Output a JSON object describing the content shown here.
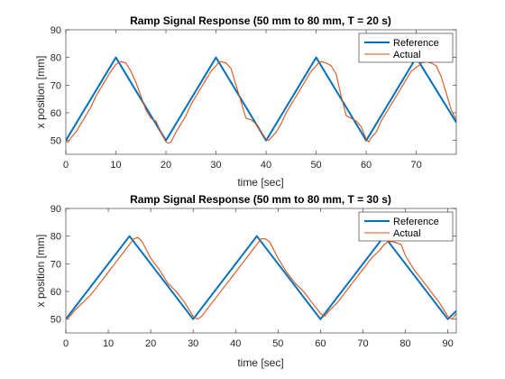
{
  "chart_data": [
    {
      "type": "line",
      "title": "Ramp Signal Response (50 mm to 80 mm, T = 20 s)",
      "xlabel": "time [sec]",
      "ylabel": "x position [mm]",
      "xlim": [
        0,
        78
      ],
      "ylim": [
        45,
        90
      ],
      "xticks": [
        0,
        10,
        20,
        30,
        40,
        50,
        60,
        70
      ],
      "yticks": [
        50,
        60,
        70,
        80,
        90
      ],
      "grid": false,
      "legend": "top-right",
      "series": [
        {
          "name": "Reference",
          "color": "#0072BD",
          "x": [
            0,
            10,
            20,
            30,
            40,
            50,
            60,
            70,
            78
          ],
          "y": [
            50,
            80,
            50,
            80,
            50,
            80,
            50,
            80,
            56.5
          ]
        },
        {
          "name": "Actual",
          "color": "#D95319",
          "x": [
            0,
            0.5,
            1,
            2,
            3,
            4,
            5,
            6,
            7,
            8,
            9,
            10,
            10.5,
            11,
            12,
            13,
            14,
            15,
            16,
            17,
            18,
            19,
            20,
            20.5,
            21,
            22,
            23,
            24,
            25,
            26,
            27,
            28,
            29,
            30,
            30.5,
            31,
            32,
            33,
            34,
            35,
            36,
            37,
            38,
            39,
            40,
            40.5,
            41,
            42,
            43,
            44,
            45,
            46,
            47,
            48,
            49,
            50,
            50.5,
            51,
            52,
            53,
            54,
            55,
            56,
            57,
            58,
            59,
            60,
            60.5,
            61,
            62,
            63,
            64,
            65,
            66,
            67,
            68,
            69,
            70,
            70.5,
            71,
            72,
            73,
            74,
            75,
            76,
            77,
            78
          ],
          "y": [
            49.5,
            49.5,
            51,
            53,
            56,
            59,
            62,
            66,
            69,
            72,
            75,
            77.5,
            78,
            78.5,
            78,
            75,
            71,
            66,
            61,
            58,
            57,
            53,
            49.5,
            49,
            49.5,
            53,
            56,
            59,
            63,
            66,
            69,
            72,
            75,
            77,
            78,
            78.5,
            78,
            76,
            70,
            64,
            58,
            57.5,
            56,
            53,
            50.5,
            50,
            51,
            53,
            56,
            60,
            63,
            66,
            69,
            72,
            75,
            77,
            78,
            78.5,
            78,
            77,
            74,
            66,
            59,
            58,
            57,
            55,
            50.5,
            49.5,
            51,
            53,
            57,
            60,
            63,
            66,
            69,
            72,
            75,
            76.5,
            77,
            78,
            78.5,
            78,
            77,
            73,
            67,
            61,
            57.5
          ]
        }
      ]
    },
    {
      "type": "line",
      "title": "Ramp Signal Response (50 mm to 80 mm, T = 30 s)",
      "xlabel": "time [sec]",
      "ylabel": "x position [mm]",
      "xlim": [
        0,
        92
      ],
      "ylim": [
        45,
        90
      ],
      "xticks": [
        0,
        10,
        20,
        30,
        40,
        50,
        60,
        70,
        80,
        90
      ],
      "yticks": [
        50,
        60,
        70,
        80,
        90
      ],
      "grid": false,
      "legend": "top-right",
      "series": [
        {
          "name": "Reference",
          "color": "#0072BD",
          "x": [
            0,
            15,
            30,
            45,
            60,
            75,
            90,
            92
          ],
          "y": [
            50,
            80,
            50,
            80,
            50,
            80,
            50,
            53
          ]
        },
        {
          "name": "Actual",
          "color": "#D95319",
          "x": [
            0,
            1,
            2,
            4,
            6,
            8,
            10,
            12,
            14,
            15,
            16,
            17,
            18,
            19,
            20,
            22,
            24,
            26,
            28,
            30,
            31,
            32,
            34,
            36,
            38,
            40,
            42,
            44,
            45,
            46,
            47,
            48,
            49,
            50,
            52,
            54,
            56,
            58,
            60,
            61,
            62,
            64,
            66,
            68,
            70,
            72,
            74,
            75,
            76,
            77,
            78,
            79,
            80,
            82,
            84,
            86,
            88,
            90,
            91,
            92
          ],
          "y": [
            50,
            51,
            53,
            56,
            59,
            63,
            67,
            71,
            75,
            77,
            79,
            79.5,
            78,
            75,
            72,
            68,
            63,
            60,
            56,
            51,
            50,
            51,
            55,
            59,
            63,
            67,
            71,
            75,
            77,
            79,
            79,
            78,
            75,
            72,
            67,
            63,
            60,
            56,
            52,
            51,
            53,
            56,
            60,
            64,
            68,
            72,
            75,
            77,
            78,
            78,
            77.5,
            77,
            73,
            68,
            64,
            60,
            56,
            51,
            50,
            52
          ]
        }
      ]
    }
  ]
}
